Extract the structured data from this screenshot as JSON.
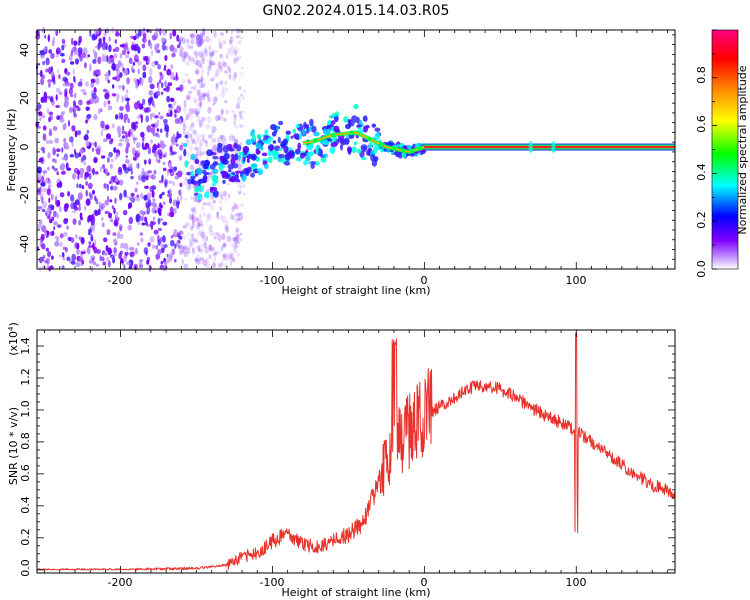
{
  "chart_data": [
    {
      "type": "heatmap",
      "title": "GN02.2024.015.14.03.R05",
      "xlabel": "Height of straight line (km)",
      "ylabel": "Frequency (Hz)",
      "xlim": [
        -255,
        165
      ],
      "ylim": [
        -50,
        48
      ],
      "xticks": [
        -200,
        -100,
        0,
        100
      ],
      "yticks": [
        -40,
        -20,
        0,
        20,
        40
      ],
      "xtick_labels": [
        "-200",
        "-100",
        "0",
        "100"
      ],
      "ytick_labels": [
        "-40",
        "-20",
        "0",
        "20",
        "40"
      ],
      "colorbar": {
        "label": "Normalized spectral amplitude",
        "range": [
          0,
          1
        ],
        "ticks": [
          0.0,
          0.2,
          0.4,
          0.6,
          0.8
        ],
        "tick_labels": [
          "0.0",
          "0.2",
          "0.4",
          "0.6",
          "0.8"
        ],
        "colors": [
          "#ffffff",
          "#7f00ff",
          "#0000ff",
          "#00ffff",
          "#00ff00",
          "#ffff00",
          "#ff8000",
          "#ff0000",
          "#ff0080"
        ]
      },
      "trace": [
        {
          "x": -155,
          "y": -12
        },
        {
          "x": -140,
          "y": -11
        },
        {
          "x": -125,
          "y": -8
        },
        {
          "x": -110,
          "y": -3
        },
        {
          "x": -90,
          "y": 1
        },
        {
          "x": -75,
          "y": 2
        },
        {
          "x": -60,
          "y": 5
        },
        {
          "x": -45,
          "y": 6
        },
        {
          "x": -35,
          "y": 3
        },
        {
          "x": -25,
          "y": 0
        },
        {
          "x": -10,
          "y": -2
        },
        {
          "x": 0,
          "y": 0
        },
        {
          "x": 50,
          "y": 0
        },
        {
          "x": 100,
          "y": 0
        },
        {
          "x": 165,
          "y": 0
        }
      ]
    },
    {
      "type": "line",
      "xlabel": "Height of straight line (km)",
      "ylabel": "SNR (10 * v/v)",
      "y_exponent_label": "(x10",
      "y_exponent_power": "4",
      "y_exponent_close": ")",
      "xlim": [
        -255,
        165
      ],
      "ylim": [
        -0.02,
        1.5
      ],
      "xticks": [
        -200,
        -100,
        0,
        100
      ],
      "yticks": [
        0.0,
        0.2,
        0.4,
        0.6,
        0.8,
        1.0,
        1.2,
        1.4
      ],
      "xtick_labels": [
        "-200",
        "-100",
        "0",
        "100"
      ],
      "ytick_labels": [
        "0.0",
        "0.2",
        "0.4",
        "0.6",
        "0.8",
        "1.0",
        "1.2",
        "1.4"
      ],
      "color": "#e8312b",
      "x": [
        -255,
        -200,
        -150,
        -130,
        -120,
        -110,
        -100,
        -90,
        -80,
        -70,
        -60,
        -50,
        -40,
        -30,
        -25,
        -20,
        -15,
        -10,
        -5,
        0,
        10,
        20,
        30,
        40,
        50,
        60,
        70,
        80,
        90,
        100,
        110,
        120,
        130,
        140,
        150,
        165
      ],
      "y": [
        0.0,
        0.0,
        0.01,
        0.03,
        0.08,
        0.1,
        0.18,
        0.22,
        0.16,
        0.14,
        0.18,
        0.22,
        0.3,
        0.55,
        0.65,
        0.78,
        0.82,
        0.85,
        0.9,
        0.95,
        1.02,
        1.08,
        1.14,
        1.15,
        1.13,
        1.08,
        1.02,
        0.96,
        0.92,
        0.87,
        0.8,
        0.73,
        0.66,
        0.59,
        0.53,
        0.48
      ]
    }
  ]
}
